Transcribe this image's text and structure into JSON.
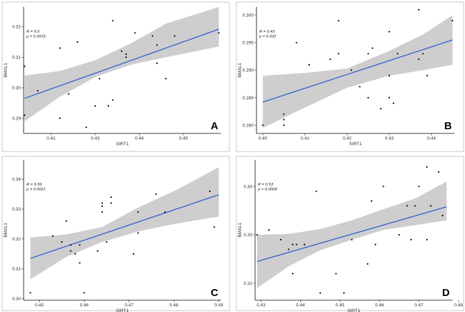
{
  "chart_data": [
    {
      "panel": "A",
      "type": "scatter",
      "xlabel": "SIRT1",
      "ylabel": "BMAL1",
      "annotation_r": "R = 0.6",
      "annotation_p": "p = 0.0016",
      "xlim": [
        0.4138,
        0.4585
      ],
      "ylim": [
        0.285,
        0.3265
      ],
      "x_ticks": [
        0.42,
        0.43,
        0.44,
        0.45
      ],
      "x_tick_labels": [
        "0.42",
        "0.43",
        "0.44",
        "0.45"
      ],
      "y_ticks": [
        0.29,
        0.3,
        0.31,
        0.32
      ],
      "y_tick_labels": [
        "0.29",
        "0.30",
        "0.31",
        "0.32"
      ],
      "fit_line": [
        [
          0.414,
          0.2965
        ],
        [
          0.458,
          0.3192
        ]
      ],
      "confidence_band": {
        "x": [
          0.414,
          0.422,
          0.43,
          0.438,
          0.446,
          0.458
        ],
        "lower": [
          0.289,
          0.297,
          0.3035,
          0.3075,
          0.31,
          0.3135
        ],
        "upper": [
          0.304,
          0.3055,
          0.309,
          0.3145,
          0.321,
          0.3265
        ]
      },
      "points": [
        [
          0.414,
          0.307
        ],
        [
          0.414,
          0.291
        ],
        [
          0.417,
          0.299
        ],
        [
          0.422,
          0.313
        ],
        [
          0.422,
          0.29
        ],
        [
          0.424,
          0.298
        ],
        [
          0.426,
          0.315
        ],
        [
          0.428,
          0.287
        ],
        [
          0.43,
          0.294
        ],
        [
          0.431,
          0.303
        ],
        [
          0.433,
          0.294
        ],
        [
          0.434,
          0.296
        ],
        [
          0.434,
          0.322
        ],
        [
          0.436,
          0.312
        ],
        [
          0.437,
          0.311
        ],
        [
          0.437,
          0.31
        ],
        [
          0.439,
          0.318
        ],
        [
          0.443,
          0.317
        ],
        [
          0.444,
          0.314
        ],
        [
          0.444,
          0.308
        ],
        [
          0.446,
          0.303
        ],
        [
          0.448,
          0.317
        ],
        [
          0.458,
          0.318
        ]
      ]
    },
    {
      "panel": "B",
      "type": "scatter",
      "xlabel": "SIRT1",
      "ylabel": "BMAL1",
      "annotation_r": "R = 0.43",
      "annotation_p": "p = 0.032",
      "xlim": [
        0.3985,
        0.4455
      ],
      "ylim": [
        0.2785,
        0.3015
      ],
      "x_ticks": [
        0.4,
        0.41,
        0.42,
        0.43,
        0.44
      ],
      "x_tick_labels": [
        "0.40",
        "0.41",
        "0.42",
        "0.43",
        "0.44"
      ],
      "y_ticks": [
        0.28,
        0.285,
        0.29,
        0.295,
        0.3
      ],
      "y_tick_labels": [
        "0.280",
        "0.285",
        "0.290",
        "0.295",
        "0.300"
      ],
      "fit_line": [
        [
          0.4,
          0.2842
        ],
        [
          0.445,
          0.2955
        ]
      ],
      "confidence_band": {
        "x": [
          0.4,
          0.41,
          0.42,
          0.43,
          0.438,
          0.445
        ],
        "lower": [
          0.2795,
          0.2832,
          0.2868,
          0.289,
          0.29,
          0.291
        ],
        "upper": [
          0.289,
          0.2895,
          0.2903,
          0.2935,
          0.2965,
          0.3
        ]
      },
      "points": [
        [
          0.4,
          0.28
        ],
        [
          0.405,
          0.282
        ],
        [
          0.405,
          0.281
        ],
        [
          0.405,
          0.28
        ],
        [
          0.408,
          0.295
        ],
        [
          0.411,
          0.291
        ],
        [
          0.416,
          0.292
        ],
        [
          0.418,
          0.299
        ],
        [
          0.418,
          0.293
        ],
        [
          0.421,
          0.29
        ],
        [
          0.423,
          0.287
        ],
        [
          0.425,
          0.285
        ],
        [
          0.425,
          0.293
        ],
        [
          0.426,
          0.294
        ],
        [
          0.428,
          0.283
        ],
        [
          0.43,
          0.289
        ],
        [
          0.43,
          0.285
        ],
        [
          0.43,
          0.297
        ],
        [
          0.431,
          0.284
        ],
        [
          0.432,
          0.293
        ],
        [
          0.437,
          0.292
        ],
        [
          0.437,
          0.301
        ],
        [
          0.438,
          0.293
        ],
        [
          0.439,
          0.289
        ],
        [
          0.445,
          0.299
        ]
      ]
    },
    {
      "panel": "C",
      "type": "scatter",
      "xlabel": "SIRT1",
      "ylabel": "BMAL1",
      "annotation_r": "R = 0.59",
      "annotation_p": "p = 0.0021",
      "xlim": [
        0.4465,
        0.4905
      ],
      "ylim": [
        0.2995,
        0.3465
      ],
      "x_ticks": [
        0.45,
        0.46,
        0.47,
        0.48,
        0.49
      ],
      "x_tick_labels": [
        "0.45",
        "0.46",
        "0.47",
        "0.48",
        "0.49"
      ],
      "y_ticks": [
        0.3,
        0.31,
        0.32,
        0.33,
        0.34
      ],
      "y_tick_labels": [
        "0.30",
        "0.31",
        "0.32",
        "0.33",
        "0.34"
      ],
      "fit_line": [
        [
          0.448,
          0.3135
        ],
        [
          0.49,
          0.3348
        ]
      ],
      "confidence_band": {
        "x": [
          0.448,
          0.456,
          0.464,
          0.472,
          0.48,
          0.49
        ],
        "lower": [
          0.3065,
          0.314,
          0.319,
          0.3225,
          0.325,
          0.3275
        ],
        "upper": [
          0.3205,
          0.3215,
          0.324,
          0.3305,
          0.336,
          0.344
        ]
      },
      "points": [
        [
          0.448,
          0.302
        ],
        [
          0.453,
          0.321
        ],
        [
          0.455,
          0.319
        ],
        [
          0.456,
          0.326
        ],
        [
          0.457,
          0.316
        ],
        [
          0.457,
          0.318
        ],
        [
          0.458,
          0.315
        ],
        [
          0.459,
          0.312
        ],
        [
          0.459,
          0.318
        ],
        [
          0.46,
          0.302
        ],
        [
          0.463,
          0.316
        ],
        [
          0.464,
          0.332
        ],
        [
          0.464,
          0.329
        ],
        [
          0.464,
          0.331
        ],
        [
          0.465,
          0.319
        ],
        [
          0.466,
          0.334
        ],
        [
          0.466,
          0.332
        ],
        [
          0.471,
          0.315
        ],
        [
          0.472,
          0.329
        ],
        [
          0.472,
          0.322
        ],
        [
          0.476,
          0.335
        ],
        [
          0.478,
          0.329
        ],
        [
          0.488,
          0.336
        ],
        [
          0.489,
          0.324
        ]
      ]
    },
    {
      "panel": "D",
      "type": "scatter",
      "xlabel": "SIRT1",
      "ylabel": "BMAL1",
      "annotation_r": "R = 0.53",
      "annotation_p": "p = 0.0068",
      "xlim": [
        0.4285,
        0.4785
      ],
      "ylim": [
        0.3165,
        0.3455
      ],
      "x_ticks": [
        0.43,
        0.44,
        0.45,
        0.46,
        0.47,
        0.48
      ],
      "x_tick_labels": [
        "0.43",
        "0.44",
        "0.45",
        "0.46",
        "0.47",
        "0.48"
      ],
      "y_ticks": [
        0.32,
        0.33,
        0.34
      ],
      "y_tick_labels": [
        "0.32",
        "0.33",
        "0.34"
      ],
      "fit_line": [
        [
          0.429,
          0.3245
        ],
        [
          0.477,
          0.3358
        ]
      ],
      "confidence_band": {
        "x": [
          0.429,
          0.437,
          0.445,
          0.453,
          0.461,
          0.469,
          0.477
        ],
        "lower": [
          0.319,
          0.3235,
          0.3268,
          0.329,
          0.331,
          0.332,
          0.333
        ],
        "upper": [
          0.33,
          0.3302,
          0.3312,
          0.333,
          0.3353,
          0.3375,
          0.341
        ]
      },
      "points": [
        [
          0.429,
          0.33
        ],
        [
          0.432,
          0.331
        ],
        [
          0.435,
          0.329
        ],
        [
          0.437,
          0.327
        ],
        [
          0.438,
          0.328
        ],
        [
          0.438,
          0.322
        ],
        [
          0.439,
          0.328
        ],
        [
          0.441,
          0.328
        ],
        [
          0.444,
          0.339
        ],
        [
          0.445,
          0.318
        ],
        [
          0.449,
          0.322
        ],
        [
          0.451,
          0.318
        ],
        [
          0.453,
          0.329
        ],
        [
          0.457,
          0.324
        ],
        [
          0.458,
          0.337
        ],
        [
          0.459,
          0.328
        ],
        [
          0.461,
          0.34
        ],
        [
          0.465,
          0.33
        ],
        [
          0.467,
          0.336
        ],
        [
          0.468,
          0.329
        ],
        [
          0.469,
          0.336
        ],
        [
          0.47,
          0.34
        ],
        [
          0.472,
          0.329
        ],
        [
          0.472,
          0.344
        ],
        [
          0.473,
          0.336
        ],
        [
          0.475,
          0.343
        ],
        [
          0.476,
          0.334
        ]
      ]
    }
  ]
}
